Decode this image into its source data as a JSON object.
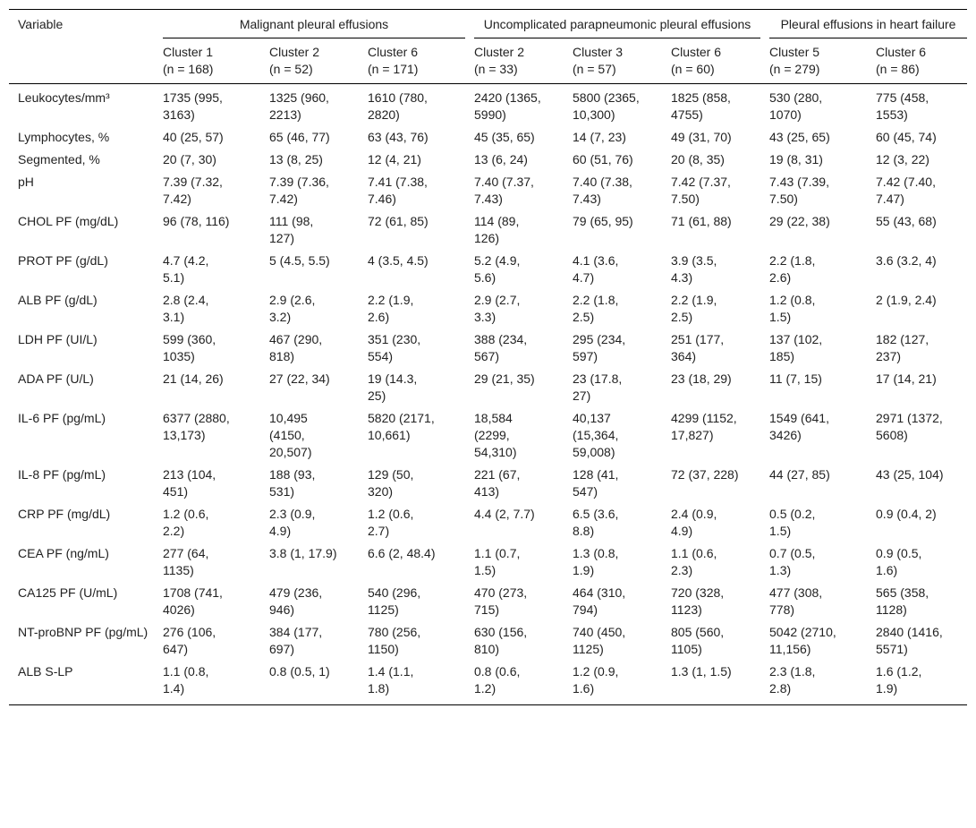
{
  "table": {
    "variable_header": "Variable",
    "groups": [
      {
        "title": "Malignant pleural effusions",
        "clusters": [
          {
            "name": "Cluster 1",
            "n": "(n = 168)"
          },
          {
            "name": "Cluster 2",
            "n": "(n = 52)"
          },
          {
            "name": "Cluster 6",
            "n": "(n = 171)"
          }
        ]
      },
      {
        "title": "Uncomplicated parapneumonic pleural effusions",
        "clusters": [
          {
            "name": "Cluster 2",
            "n": "(n = 33)"
          },
          {
            "name": "Cluster 3",
            "n": "(n = 57)"
          },
          {
            "name": "Cluster 6",
            "n": "(n = 60)"
          }
        ]
      },
      {
        "title": "Pleural effusions in heart failure",
        "clusters": [
          {
            "name": "Cluster 5",
            "n": "(n = 279)"
          },
          {
            "name": "Cluster 6",
            "n": "(n = 86)"
          }
        ]
      }
    ],
    "rows": [
      {
        "label": "Leukocytes/mm³",
        "values": [
          "1735 (995, 3163)",
          "1325 (960, 2213)",
          "1610 (780, 2820)",
          "2420 (1365, 5990)",
          "5800 (2365, 10,300)",
          "1825 (858, 4755)",
          "530 (280, 1070)",
          "775 (458, 1553)"
        ]
      },
      {
        "label": "Lymphocytes, %",
        "values": [
          "40 (25, 57)",
          "65 (46, 77)",
          "63 (43, 76)",
          "45 (35, 65)",
          "14 (7, 23)",
          "49 (31, 70)",
          "43 (25, 65)",
          "60 (45, 74)"
        ]
      },
      {
        "label": "Segmented, %",
        "values": [
          "20 (7, 30)",
          "13 (8, 25)",
          "12 (4, 21)",
          "13 (6, 24)",
          "60 (51, 76)",
          "20 (8, 35)",
          "19 (8, 31)",
          "12 (3, 22)"
        ]
      },
      {
        "label": "pH",
        "values": [
          "7.39 (7.32, 7.42)",
          "7.39 (7.36, 7.42)",
          "7.41 (7.38, 7.46)",
          "7.40 (7.37, 7.43)",
          "7.40 (7.38, 7.43)",
          "7.42 (7.37, 7.50)",
          "7.43 (7.39, 7.50)",
          "7.42 (7.40, 7.47)"
        ]
      },
      {
        "label": "CHOL PF (mg/dL)",
        "values": [
          "96 (78, 116)",
          "111 (98, 127)",
          "72 (61, 85)",
          "114 (89, 126)",
          "79 (65, 95)",
          "71 (61, 88)",
          "29 (22, 38)",
          "55 (43, 68)"
        ]
      },
      {
        "label": "PROT PF (g/dL)",
        "values": [
          "4.7 (4.2, 5.1)",
          "5 (4.5, 5.5)",
          "4 (3.5, 4.5)",
          "5.2 (4.9, 5.6)",
          "4.1 (3.6, 4.7)",
          "3.9 (3.5, 4.3)",
          "2.2 (1.8, 2.6)",
          "3.6 (3.2, 4)"
        ]
      },
      {
        "label": "ALB PF (g/dL)",
        "values": [
          "2.8 (2.4, 3.1)",
          "2.9 (2.6, 3.2)",
          "2.2 (1.9, 2.6)",
          "2.9 (2.7, 3.3)",
          "2.2 (1.8, 2.5)",
          "2.2 (1.9, 2.5)",
          "1.2 (0.8, 1.5)",
          "2 (1.9, 2.4)"
        ]
      },
      {
        "label": "LDH PF (UI/L)",
        "values": [
          "599 (360, 1035)",
          "467 (290, 818)",
          "351 (230, 554)",
          "388 (234, 567)",
          "295 (234, 597)",
          "251 (177, 364)",
          "137 (102, 185)",
          "182 (127, 237)"
        ]
      },
      {
        "label": "ADA PF (U/L)",
        "values": [
          "21 (14, 26)",
          "27 (22, 34)",
          "19 (14.3, 25)",
          "29 (21, 35)",
          "23 (17.8, 27)",
          "23 (18, 29)",
          "11 (7, 15)",
          "17 (14, 21)"
        ]
      },
      {
        "label": "IL-6 PF (pg/mL)",
        "values": [
          "6377 (2880, 13,173)",
          "10,495 (4150, 20,507)",
          "5820 (2171, 10,661)",
          "18,584 (2299, 54,310)",
          "40,137 (15,364, 59,008)",
          "4299 (1152, 17,827)",
          "1549 (641, 3426)",
          "2971 (1372, 5608)"
        ]
      },
      {
        "label": "IL-8 PF (pg/mL)",
        "values": [
          "213 (104, 451)",
          "188 (93, 531)",
          "129 (50, 320)",
          "221 (67, 413)",
          "128 (41, 547)",
          "72 (37, 228)",
          "44 (27, 85)",
          "43 (25, 104)"
        ]
      },
      {
        "label": "CRP PF (mg/dL)",
        "values": [
          "1.2 (0.6, 2.2)",
          "2.3 (0.9, 4.9)",
          "1.2 (0.6, 2.7)",
          "4.4 (2, 7.7)",
          "6.5 (3.6, 8.8)",
          "2.4 (0.9, 4.9)",
          "0.5 (0.2, 1.5)",
          "0.9 (0.4, 2)"
        ]
      },
      {
        "label": "CEA PF (ng/mL)",
        "values": [
          "277 (64, 1135)",
          "3.8 (1, 17.9)",
          "6.6 (2, 48.4)",
          "1.1 (0.7, 1.5)",
          "1.3 (0.8, 1.9)",
          "1.1 (0.6, 2.3)",
          "0.7 (0.5, 1.3)",
          "0.9 (0.5, 1.6)"
        ]
      },
      {
        "label": "CA125 PF (U/mL)",
        "values": [
          "1708 (741, 4026)",
          "479 (236, 946)",
          "540 (296, 1125)",
          "470 (273, 715)",
          "464 (310, 794)",
          "720 (328, 1123)",
          "477 (308, 778)",
          "565 (358, 1128)"
        ]
      },
      {
        "label": "NT-proBNP PF (pg/mL)",
        "values": [
          "276 (106, 647)",
          "384 (177, 697)",
          "780 (256, 1150)",
          "630 (156, 810)",
          "740 (450, 1125)",
          "805 (560, 1105)",
          "5042 (2710, 11,156)",
          "2840 (1416, 5571)"
        ]
      },
      {
        "label": "ALB S-LP",
        "values": [
          "1.1 (0.8, 1.4)",
          "0.8 (0.5, 1)",
          "1.4 (1.1, 1.8)",
          "0.8 (0.6, 1.2)",
          "1.2 (0.9, 1.6)",
          "1.3 (1, 1.5)",
          "2.3 (1.8, 2.8)",
          "1.6 (1.2, 1.9)"
        ]
      }
    ]
  }
}
